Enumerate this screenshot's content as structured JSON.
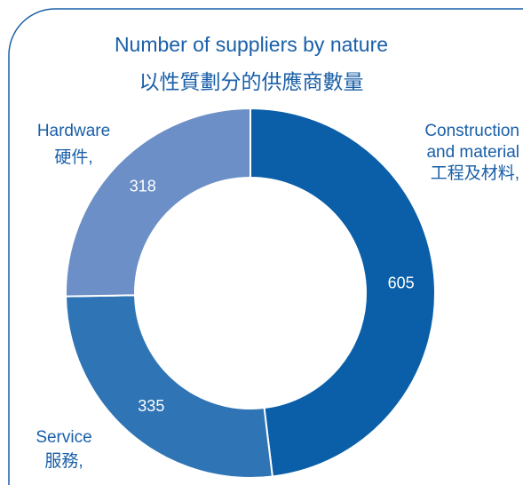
{
  "chart_data": {
    "type": "donut",
    "title": [
      "Number of suppliers by nature",
      "以性質劃分的供應商數量"
    ],
    "categories": [
      [
        "Construction",
        "and material",
        "工程及材料,"
      ],
      [
        "Service",
        "服務,"
      ],
      [
        "Hardware",
        "硬件,"
      ]
    ],
    "values": [
      605,
      335,
      318
    ],
    "colors": [
      "#0a5fa8",
      "#2f74b5",
      "#6b8fc6"
    ]
  }
}
